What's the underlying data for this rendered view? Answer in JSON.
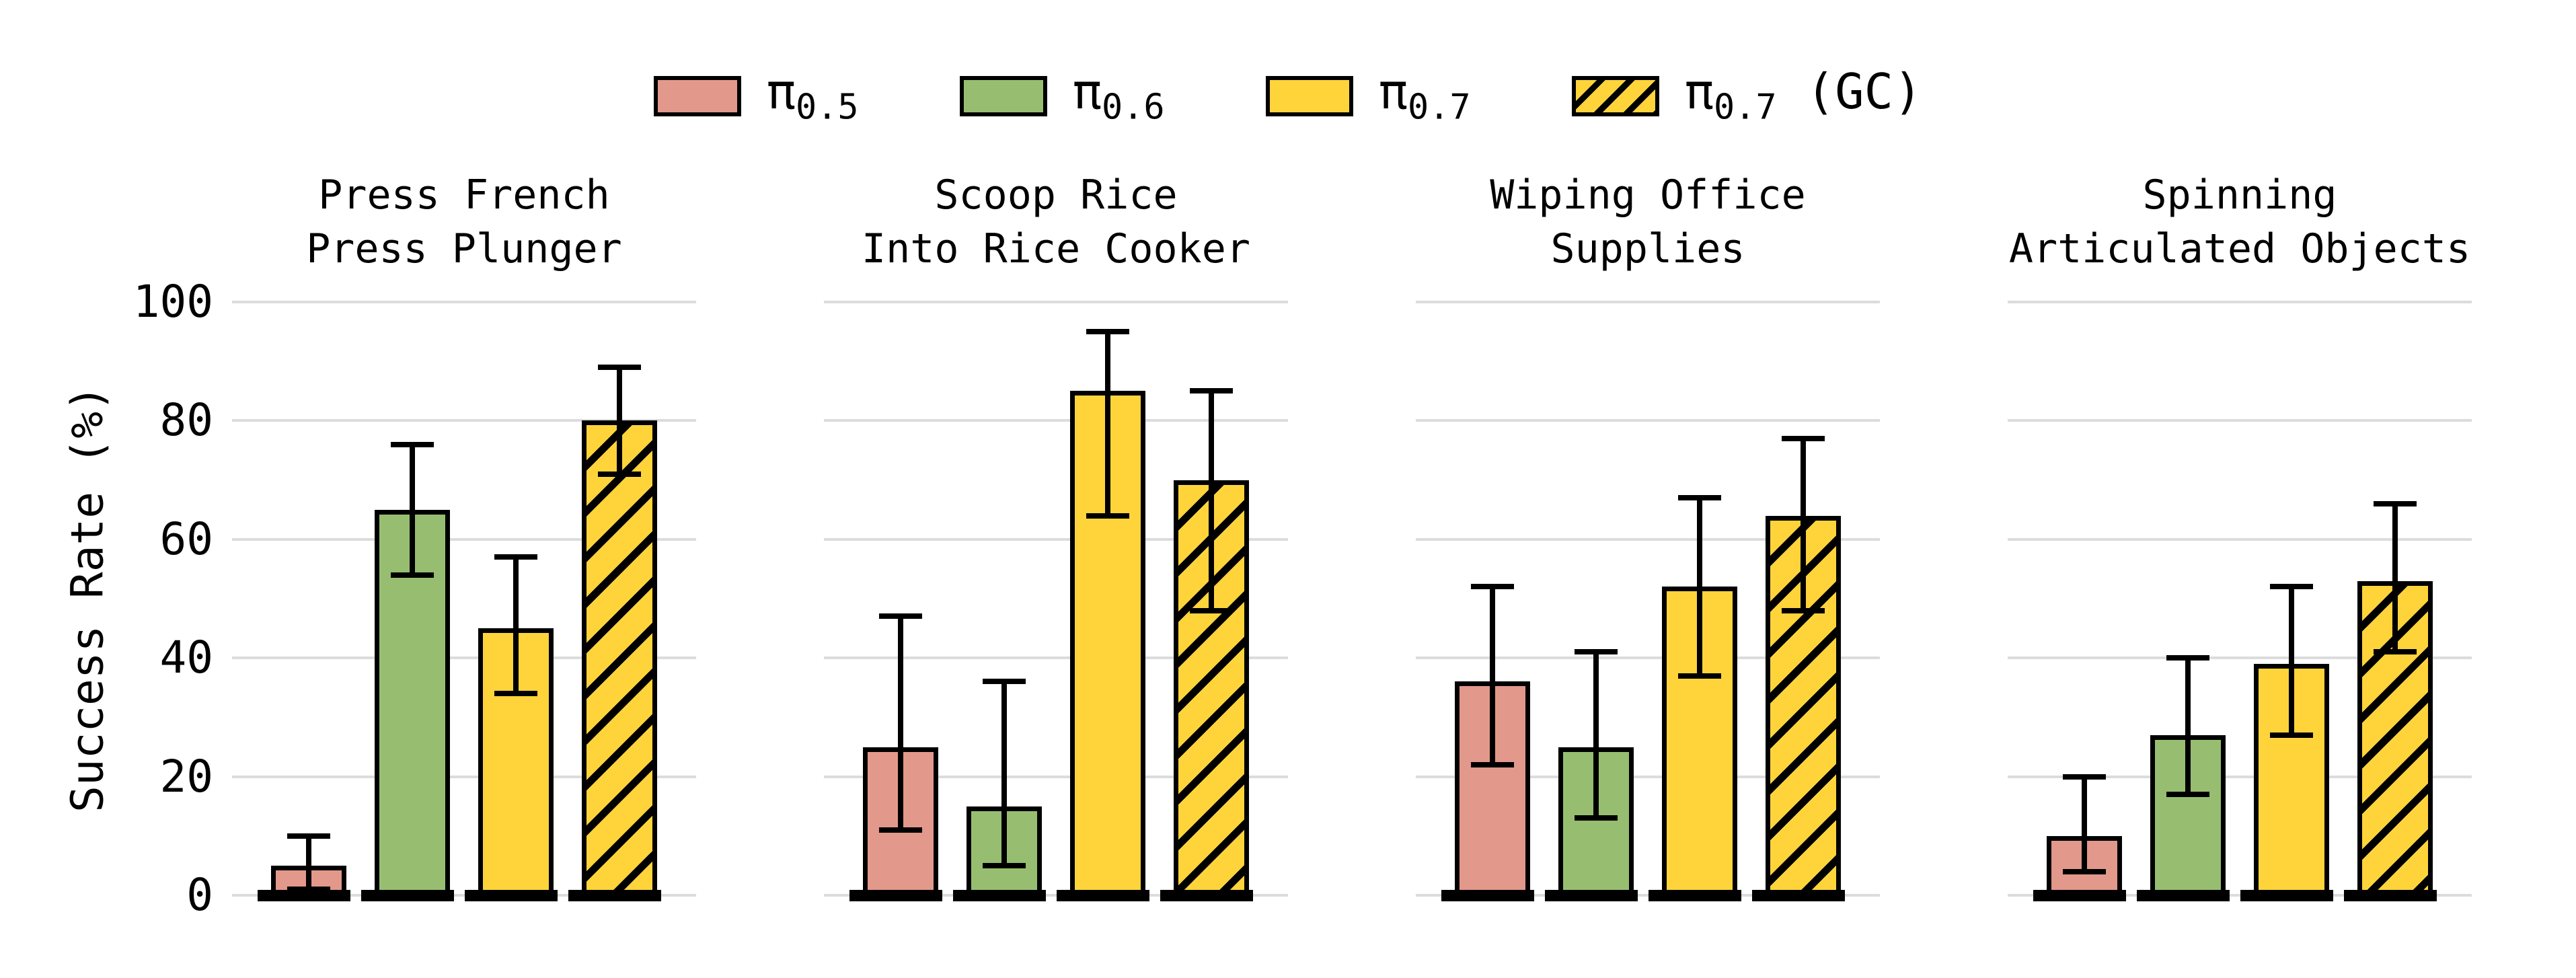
{
  "page": {
    "background": "#ffffff"
  },
  "legend": {
    "items": [
      {
        "key": "pi05",
        "symbol": "π",
        "subscript": "0.5",
        "suffix": "",
        "color": "#E2988B",
        "hatched": false
      },
      {
        "key": "pi06",
        "symbol": "π",
        "subscript": "0.6",
        "suffix": "",
        "color": "#97BE70",
        "hatched": false
      },
      {
        "key": "pi07",
        "symbol": "π",
        "subscript": "0.7",
        "suffix": "",
        "color": "#FFD43B",
        "hatched": false
      },
      {
        "key": "pi07gc",
        "symbol": "π",
        "subscript": "0.7",
        "suffix": " (GC)",
        "color": "#FFD43B",
        "hatched": true
      }
    ]
  },
  "chart_data": {
    "type": "bar",
    "ylabel": "Success Rate (%)",
    "ylim": [
      0,
      100
    ],
    "yticks": [
      0,
      20,
      40,
      60,
      80,
      100
    ],
    "grid": "horizontal",
    "legend_position": "top center",
    "series_labels": [
      "π0.5",
      "π0.6",
      "π0.7",
      "π0.7 (GC)"
    ],
    "series_keys": [
      "pi05",
      "pi06",
      "pi07",
      "pi07gc"
    ],
    "series_colors": [
      "#E2988B",
      "#97BE70",
      "#FFD43B",
      "#FFD43B"
    ],
    "series_hatch": [
      false,
      false,
      false,
      true
    ],
    "error_bars": "asymmetric confidence intervals, black caps",
    "panels": [
      {
        "title_lines": [
          "Press French",
          "Press Plunger"
        ],
        "values": [
          5,
          65,
          45,
          80
        ],
        "err_low": [
          1,
          54,
          34,
          71
        ],
        "err_high": [
          10,
          76,
          57,
          89
        ]
      },
      {
        "title_lines": [
          "Scoop Rice",
          "Into Rice Cooker"
        ],
        "values": [
          25,
          15,
          85,
          70
        ],
        "err_low": [
          11,
          5,
          64,
          48
        ],
        "err_high": [
          47,
          36,
          95,
          85
        ]
      },
      {
        "title_lines": [
          "Wiping Office",
          "Supplies"
        ],
        "values": [
          36,
          25,
          52,
          64
        ],
        "err_low": [
          22,
          13,
          37,
          48
        ],
        "err_high": [
          52,
          41,
          67,
          77
        ]
      },
      {
        "title_lines": [
          "Spinning",
          "Articulated Objects"
        ],
        "values": [
          10,
          27,
          39,
          53
        ],
        "err_low": [
          4,
          17,
          27,
          41
        ],
        "err_high": [
          20,
          40,
          52,
          66
        ]
      }
    ]
  }
}
